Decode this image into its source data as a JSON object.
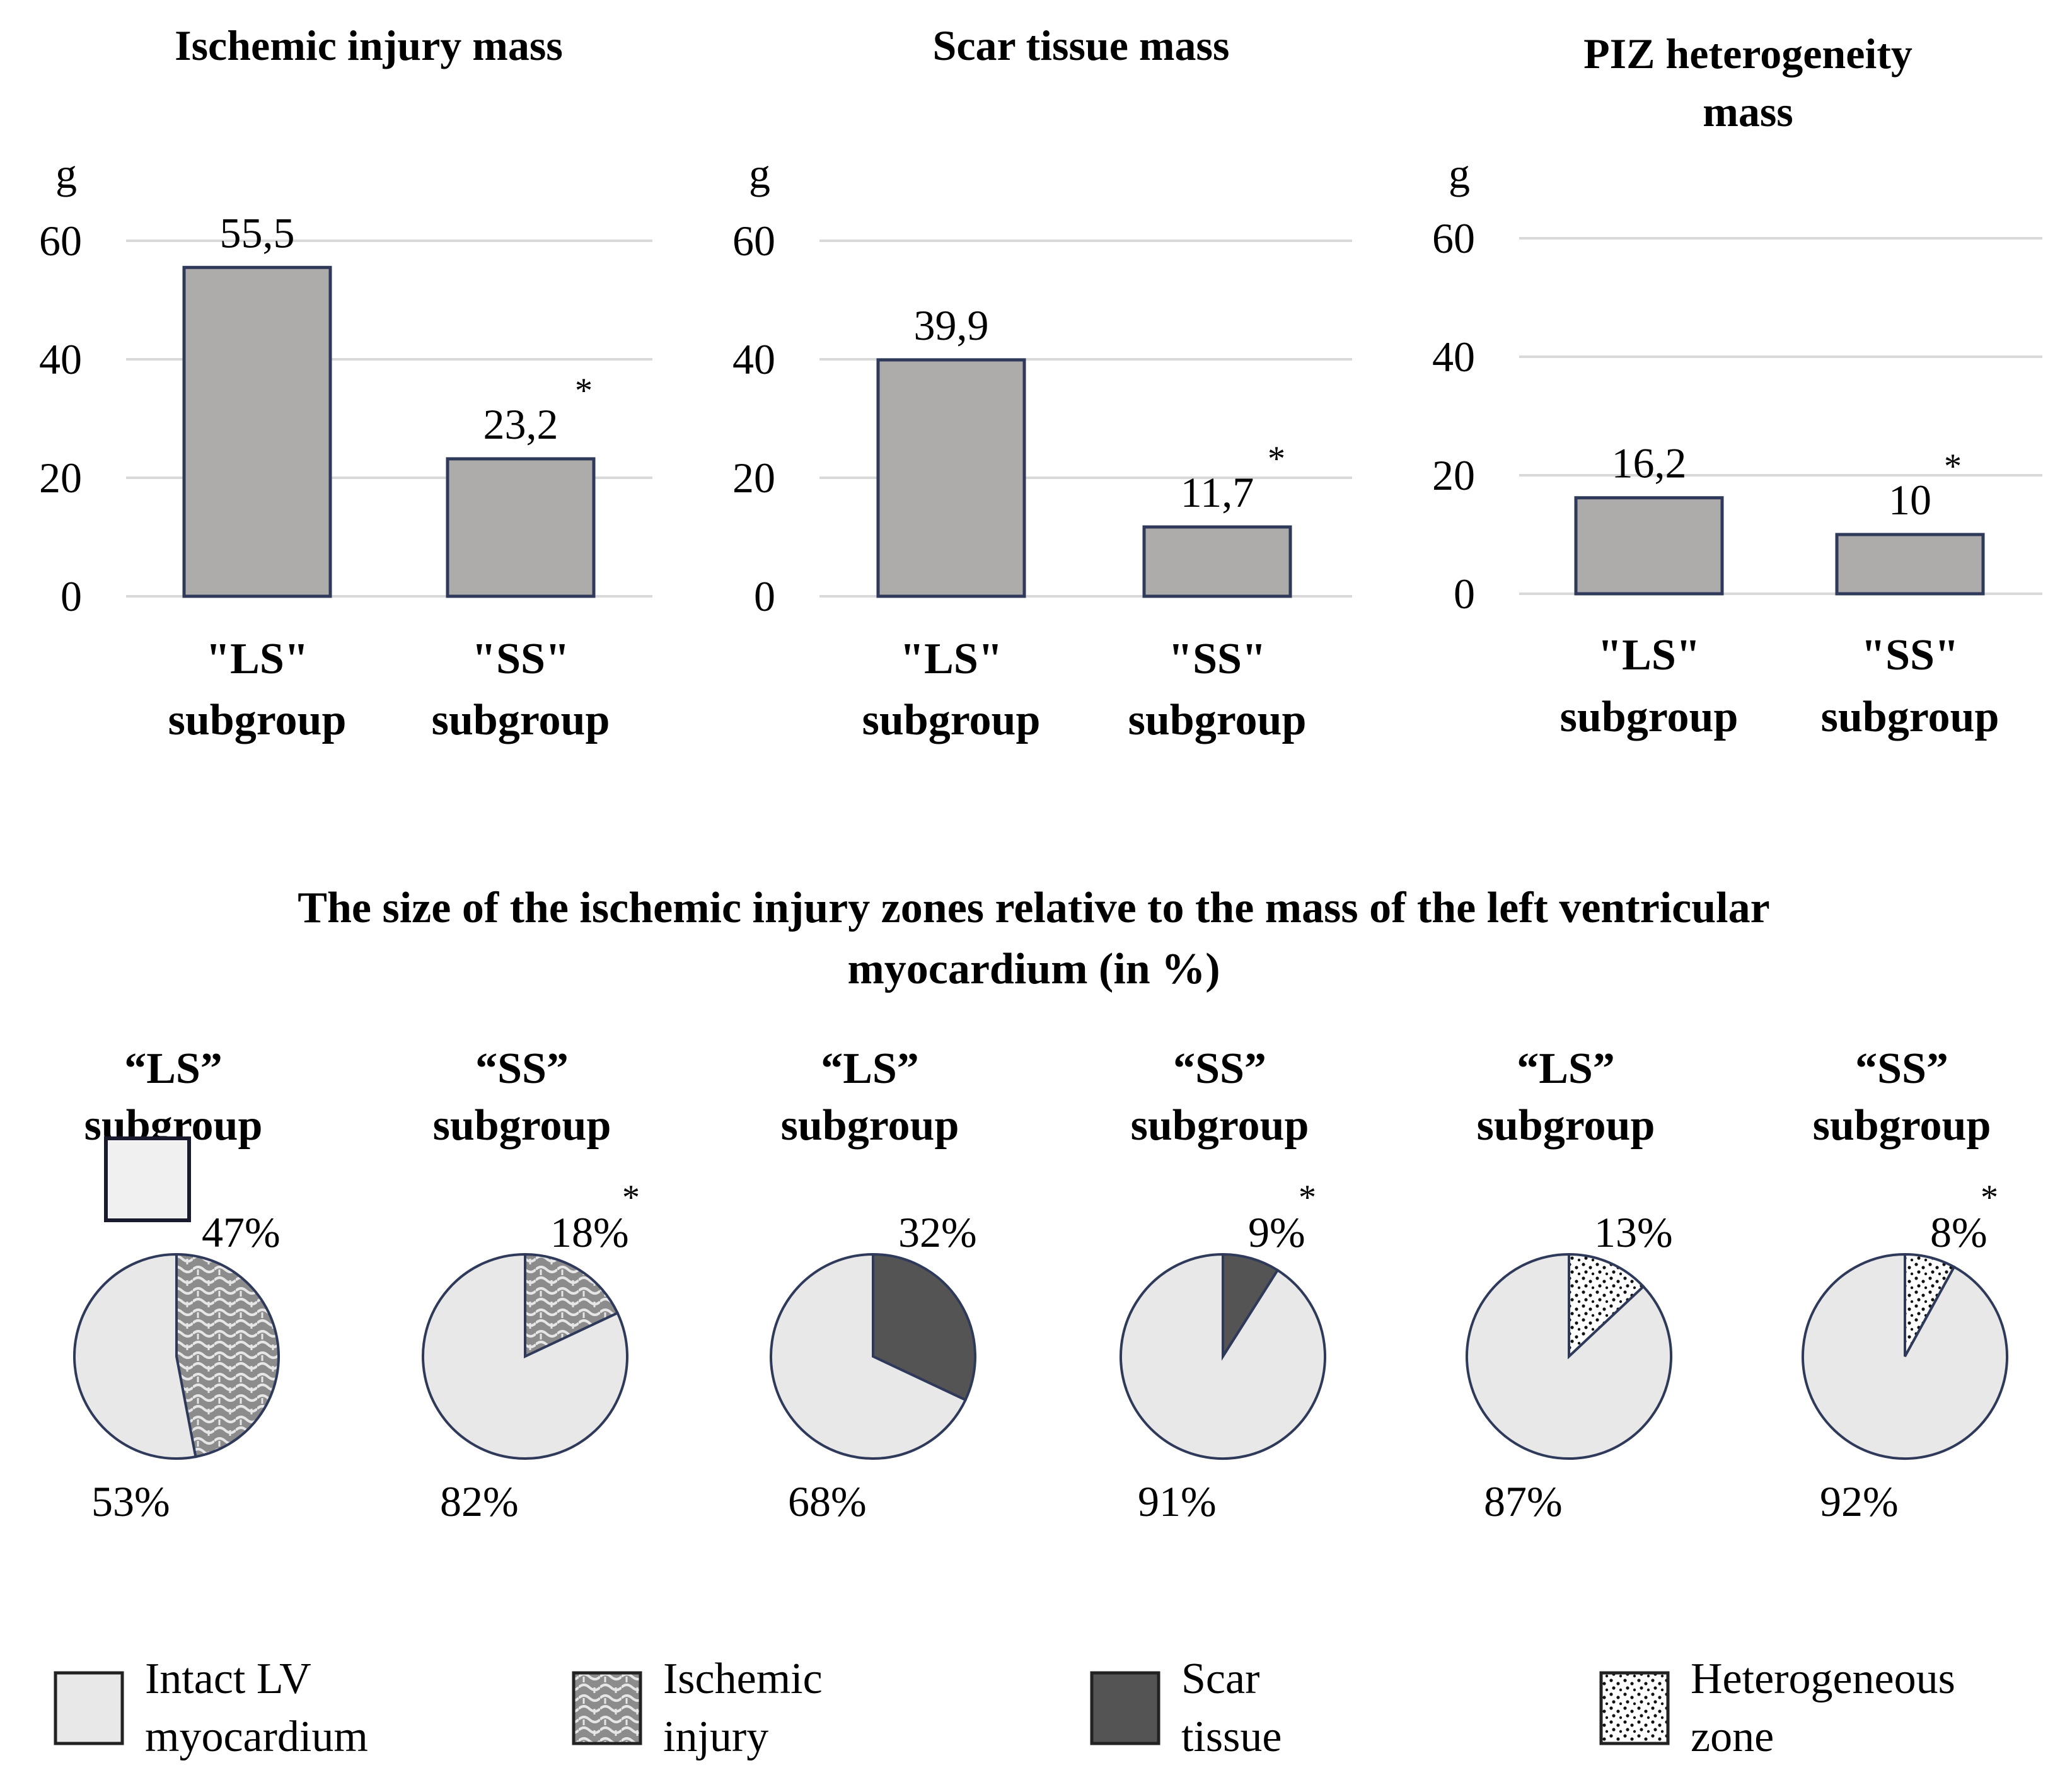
{
  "colors": {
    "bar_fill": "#aeabab",
    "bar_stroke": "#2f3a5a",
    "intact": "#e8e8e8",
    "ischemic": "#8c8c8c",
    "scar": "#545454",
    "heterogeneous": "#ffffff",
    "grid": "#d9d9d9"
  },
  "main_title": {
    "line1": "The size of the ischemic injury zones relative to the mass of the left ventricular",
    "line2": "myocardium (in %)"
  },
  "chart_data": [
    {
      "type": "bar",
      "title": [
        "Ischemic injury mass"
      ],
      "ylabel": "g",
      "ylim": [
        0,
        60
      ],
      "yticks": [
        "0",
        "20",
        "40",
        "60"
      ],
      "categories": [
        [
          "\"LS\"",
          "subgroup"
        ],
        [
          "\"SS\"",
          "subgroup"
        ]
      ],
      "values": [
        55.5,
        23.2
      ],
      "value_labels": [
        "55,5",
        "23,2"
      ],
      "significance": [
        "",
        "*"
      ]
    },
    {
      "type": "bar",
      "title": [
        "Scar tissue mass"
      ],
      "ylabel": "g",
      "ylim": [
        0,
        60
      ],
      "yticks": [
        "0",
        "20",
        "40",
        "60"
      ],
      "categories": [
        [
          "\"LS\"",
          "subgroup"
        ],
        [
          "\"SS\"",
          "subgroup"
        ]
      ],
      "values": [
        39.9,
        11.7
      ],
      "value_labels": [
        "39,9",
        "11,7"
      ],
      "significance": [
        "",
        "*"
      ]
    },
    {
      "type": "bar",
      "title": [
        "PIZ heterogeneity",
        "mass"
      ],
      "ylabel": "g",
      "ylim": [
        0,
        60
      ],
      "yticks": [
        "0",
        "20",
        "40",
        "60"
      ],
      "categories": [
        [
          "\"LS\"",
          "subgroup"
        ],
        [
          "\"SS\"",
          "subgroup"
        ]
      ],
      "values": [
        16.2,
        10
      ],
      "value_labels": [
        "16,2",
        "10"
      ],
      "significance": [
        "",
        "*"
      ]
    },
    {
      "type": "pie",
      "title": [
        "“LS”",
        "subgroup"
      ],
      "slices": [
        {
          "label": "Ischemic injury",
          "value": 47,
          "text": "47%",
          "pattern": "ischemic"
        },
        {
          "label": "Intact LV myocardium",
          "value": 53,
          "text": "53%",
          "pattern": "intact"
        }
      ],
      "significance": ""
    },
    {
      "type": "pie",
      "title": [
        "“SS”",
        "subgroup"
      ],
      "slices": [
        {
          "label": "Ischemic injury",
          "value": 18,
          "text": "18%",
          "pattern": "ischemic"
        },
        {
          "label": "Intact LV myocardium",
          "value": 82,
          "text": "82%",
          "pattern": "intact"
        }
      ],
      "significance": "*"
    },
    {
      "type": "pie",
      "title": [
        "“LS”",
        "subgroup"
      ],
      "slices": [
        {
          "label": "Scar tissue",
          "value": 32,
          "text": "32%",
          "pattern": "scar"
        },
        {
          "label": "Intact LV myocardium",
          "value": 68,
          "text": "68%",
          "pattern": "intact"
        }
      ],
      "significance": ""
    },
    {
      "type": "pie",
      "title": [
        "“SS”",
        "subgroup"
      ],
      "slices": [
        {
          "label": "Scar tissue",
          "value": 9,
          "text": "9%",
          "pattern": "scar"
        },
        {
          "label": "Intact LV myocardium",
          "value": 91,
          "text": "91%",
          "pattern": "intact"
        }
      ],
      "significance": "*"
    },
    {
      "type": "pie",
      "title": [
        "“LS”",
        "subgroup"
      ],
      "slices": [
        {
          "label": "Heterogeneous zone",
          "value": 13,
          "text": "13%",
          "pattern": "hetero"
        },
        {
          "label": "Intact LV myocardium",
          "value": 87,
          "text": "87%",
          "pattern": "intact"
        }
      ],
      "significance": ""
    },
    {
      "type": "pie",
      "title": [
        "“SS”",
        "subgroup"
      ],
      "slices": [
        {
          "label": "Heterogeneous zone",
          "value": 8,
          "text": "8%",
          "pattern": "hetero"
        },
        {
          "label": "Intact LV myocardium",
          "value": 92,
          "text": "92%",
          "pattern": "intact"
        }
      ],
      "significance": "*"
    }
  ],
  "legend": [
    {
      "lines": [
        "Intact LV",
        "myocardium"
      ],
      "pattern": "intact"
    },
    {
      "lines": [
        "Ischemic",
        "injury"
      ],
      "pattern": "ischemic"
    },
    {
      "lines": [
        "Scar",
        "tissue"
      ],
      "pattern": "scar"
    },
    {
      "lines": [
        "Heterogeneous",
        "zone"
      ],
      "pattern": "hetero"
    }
  ]
}
